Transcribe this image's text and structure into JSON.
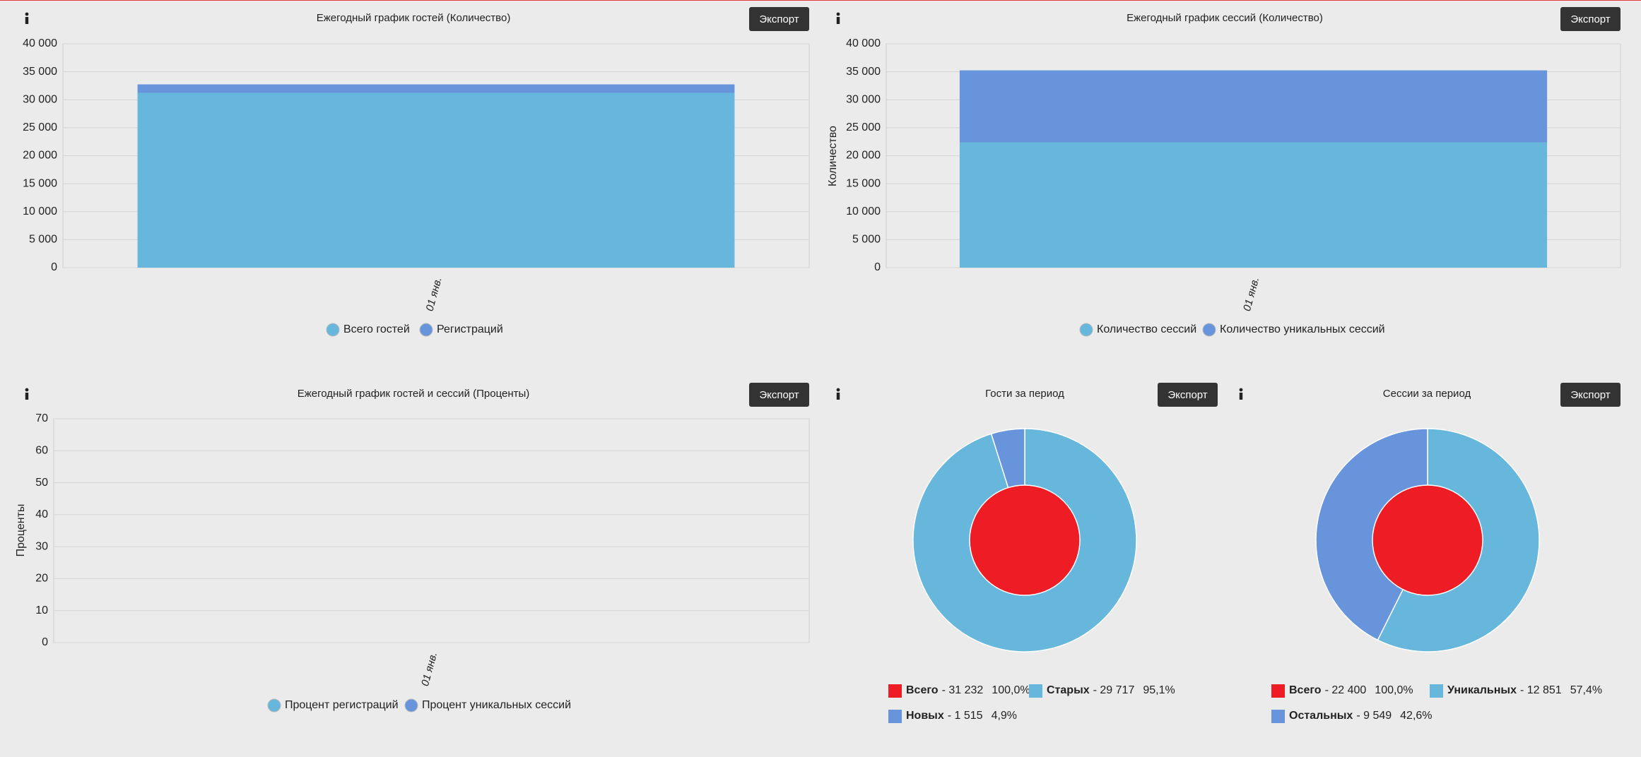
{
  "chart_data": [
    {
      "type": "bar",
      "stacked": true,
      "title": "Ежегодный график гостей (Количество)",
      "export": "Экспорт",
      "categories": [
        "01 янв."
      ],
      "series": [
        {
          "name": "Всего гостей",
          "color": "#67b6dc",
          "values": [
            31232
          ]
        },
        {
          "name": "Регистраций",
          "color": "#6894dc",
          "values": [
            1515
          ]
        }
      ],
      "ylim": [
        0,
        40000
      ],
      "yticks": [
        0,
        {
          "value": 5000,
          "label": "5 000"
        },
        {
          "value": 10000,
          "label": "10 000"
        },
        {
          "value": 15000,
          "label": "15 000"
        },
        {
          "value": 20000,
          "label": "20 000"
        },
        {
          "value": 25000,
          "label": "25 000"
        },
        {
          "value": 30000,
          "label": "30 000"
        },
        {
          "value": 35000,
          "label": "35 000"
        },
        {
          "value": 40000,
          "label": "40 000"
        }
      ],
      "grid": true
    },
    {
      "type": "bar",
      "stacked": true,
      "title": "Ежегодный график сессий (Количество)",
      "export": "Экспорт",
      "ylabel": "Количество",
      "categories": [
        "01 янв."
      ],
      "series": [
        {
          "name": "Количество сессий",
          "color": "#67b6dc",
          "values": [
            22400
          ]
        },
        {
          "name": "Количество уникальных сессий",
          "color": "#6894dc",
          "values": [
            12851
          ]
        }
      ],
      "ylim": [
        0,
        40000
      ],
      "yticks": [
        0,
        {
          "value": 5000,
          "label": "5 000"
        },
        {
          "value": 10000,
          "label": "10 000"
        },
        {
          "value": 15000,
          "label": "15 000"
        },
        {
          "value": 20000,
          "label": "20 000"
        },
        {
          "value": 25000,
          "label": "25 000"
        },
        {
          "value": 30000,
          "label": "30 000"
        },
        {
          "value": 35000,
          "label": "35 000"
        },
        {
          "value": 40000,
          "label": "40 000"
        }
      ],
      "grid": true
    },
    {
      "type": "line",
      "title": "Ежегодный график гостей и сессий (Проценты)",
      "export": "Экспорт",
      "ylabel": "Проценты",
      "categories": [
        "01 янв."
      ],
      "series": [
        {
          "name": "Процент регистраций",
          "color": "#67b6dc",
          "values": [
            null
          ]
        },
        {
          "name": "Процент уникальных сессий",
          "color": "#6894dc",
          "values": [
            null
          ]
        }
      ],
      "ylim": [
        0,
        70
      ],
      "yticks": [
        0,
        10,
        20,
        30,
        40,
        50,
        60,
        70
      ],
      "grid": true
    },
    {
      "type": "pie",
      "title": "Гости за период",
      "export": "Экспорт",
      "total": {
        "name": "Всего",
        "color": "#ee1c25",
        "value": 31232,
        "value_label": "31 232",
        "percent": 100,
        "percent_label": "100,0%"
      },
      "slices": [
        {
          "name": "Старых",
          "color": "#67b6dc",
          "value": 29717,
          "value_label": "29 717",
          "percent": 95.1,
          "percent_label": "95,1%"
        },
        {
          "name": "Новых",
          "color": "#6894dc",
          "value": 1515,
          "value_label": "1 515",
          "percent": 4.9,
          "percent_label": "4,9%"
        }
      ]
    },
    {
      "type": "pie",
      "title": "Сессии за период",
      "export": "Экспорт",
      "total": {
        "name": "Всего",
        "color": "#ee1c25",
        "value": 22400,
        "value_label": "22 400",
        "percent": 100,
        "percent_label": "100,0%"
      },
      "slices": [
        {
          "name": "Уникальных",
          "color": "#67b6dc",
          "value": 12851,
          "value_label": "12 851",
          "percent": 57.4,
          "percent_label": "57,4%"
        },
        {
          "name": "Остальных",
          "color": "#6894dc",
          "value": 9549,
          "value_label": "9 549",
          "percent": 42.6,
          "percent_label": "42,6%"
        }
      ]
    }
  ]
}
